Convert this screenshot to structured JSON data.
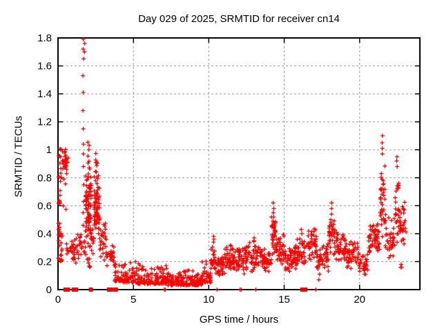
{
  "chart_data": {
    "type": "scatter",
    "title": "Day 029 of 2025, SRMTID for receiver cn14",
    "xlabel": "GPS time / hours",
    "ylabel": "SRMTID / TECUs",
    "xlim": [
      0,
      24
    ],
    "ylim": [
      0,
      1.8
    ],
    "xticks": [
      0,
      5,
      10,
      15,
      20
    ],
    "xtick_labels": [
      "0",
      "5",
      "10",
      "15",
      "20"
    ],
    "yticks": [
      0,
      0.2,
      0.4,
      0.6,
      0.8,
      1.0,
      1.2,
      1.4,
      1.6,
      1.8
    ],
    "ytick_labels": [
      "0",
      "0.2",
      "0.4",
      "0.6",
      "0.8",
      "1",
      "1.2",
      "1.4",
      "1.6",
      "1.8"
    ],
    "grid": true,
    "grid_color": "#9a9a9a",
    "marker": "plus",
    "marker_color": "#ff0000",
    "border_color": "#000000",
    "legend": "none",
    "notable_peaks": [
      {
        "x": 1.7,
        "y": 1.79
      },
      {
        "x": 2.0,
        "y": 1.18
      },
      {
        "x": 2.5,
        "y": 1.12
      },
      {
        "x": 0.5,
        "y": 1.0
      },
      {
        "x": 14.3,
        "y": 0.62
      },
      {
        "x": 18.1,
        "y": 0.62
      },
      {
        "x": 21.5,
        "y": 1.1
      },
      {
        "x": 22.5,
        "y": 0.95
      }
    ],
    "cluster_segments": [
      {
        "x0": 0.0,
        "x1": 0.28,
        "n": 26,
        "y0": 0.2,
        "y1": 0.48,
        "b": "u"
      },
      {
        "x0": 0.0,
        "x1": 0.22,
        "n": 14,
        "y0": 0.5,
        "y1": 0.92,
        "b": "u"
      },
      {
        "x0": 0.02,
        "x1": 0.3,
        "n": 6,
        "y0": 0.93,
        "y1": 1.01,
        "b": "u"
      },
      {
        "x0": 0.3,
        "x1": 0.68,
        "n": 24,
        "y0": 0.85,
        "y1": 1.02,
        "b": "m"
      },
      {
        "x0": 0.3,
        "x1": 0.6,
        "n": 5,
        "y0": 0.55,
        "y1": 0.85,
        "b": "u"
      },
      {
        "x0": 0.55,
        "x1": 1.0,
        "n": 18,
        "y0": 0.17,
        "y1": 0.36,
        "b": "m"
      },
      {
        "x0": 1.0,
        "x1": 1.5,
        "n": 24,
        "y0": 0.18,
        "y1": 0.42,
        "b": "m"
      },
      {
        "x0": 1.5,
        "x1": 1.8,
        "n": 10,
        "y0": 0.2,
        "y1": 0.4,
        "b": "m"
      },
      {
        "x0": 1.82,
        "x1": 2.2,
        "n": 85,
        "y0": 0.32,
        "y1": 0.85,
        "b": "m"
      },
      {
        "x0": 1.85,
        "x1": 2.15,
        "n": 8,
        "y0": 0.86,
        "y1": 1.18,
        "b": "l"
      },
      {
        "x0": 1.82,
        "x1": 2.25,
        "n": 12,
        "y0": 0.15,
        "y1": 0.32,
        "b": "u"
      },
      {
        "x0": 2.2,
        "x1": 2.4,
        "n": 10,
        "y0": 0.25,
        "y1": 0.5,
        "b": "m"
      },
      {
        "x0": 2.4,
        "x1": 2.75,
        "n": 65,
        "y0": 0.35,
        "y1": 0.88,
        "b": "m"
      },
      {
        "x0": 2.45,
        "x1": 2.65,
        "n": 7,
        "y0": 0.88,
        "y1": 1.12,
        "b": "l"
      },
      {
        "x0": 2.75,
        "x1": 3.2,
        "n": 30,
        "y0": 0.2,
        "y1": 0.55,
        "b": "m"
      },
      {
        "x0": 3.2,
        "x1": 3.75,
        "n": 26,
        "y0": 0.14,
        "y1": 0.34,
        "b": "m"
      },
      {
        "x0": 3.75,
        "x1": 4.3,
        "n": 36,
        "y0": 0.06,
        "y1": 0.22,
        "b": "l"
      },
      {
        "x0": 4.3,
        "x1": 5.25,
        "n": 60,
        "y0": 0.05,
        "y1": 0.22,
        "b": "l"
      },
      {
        "x0": 5.25,
        "x1": 6.25,
        "n": 62,
        "y0": 0.04,
        "y1": 0.2,
        "b": "l"
      },
      {
        "x0": 6.25,
        "x1": 7.25,
        "n": 62,
        "y0": 0.04,
        "y1": 0.19,
        "b": "l"
      },
      {
        "x0": 7.25,
        "x1": 9.55,
        "n": 150,
        "y0": 0.03,
        "y1": 0.17,
        "b": "l"
      },
      {
        "x0": 9.55,
        "x1": 10.15,
        "n": 40,
        "y0": 0.05,
        "y1": 0.23,
        "b": "l"
      },
      {
        "x0": 10.15,
        "x1": 10.5,
        "n": 26,
        "y0": 0.1,
        "y1": 0.32,
        "b": "m"
      },
      {
        "x0": 10.5,
        "x1": 11.05,
        "n": 36,
        "y0": 0.08,
        "y1": 0.26,
        "b": "m"
      },
      {
        "x0": 11.05,
        "x1": 11.65,
        "n": 42,
        "y0": 0.12,
        "y1": 0.34,
        "b": "m"
      },
      {
        "x0": 11.65,
        "x1": 12.35,
        "n": 46,
        "y0": 0.1,
        "y1": 0.31,
        "b": "m"
      },
      {
        "x0": 12.35,
        "x1": 13.35,
        "n": 58,
        "y0": 0.12,
        "y1": 0.35,
        "b": "m"
      },
      {
        "x0": 13.35,
        "x1": 14.15,
        "n": 52,
        "y0": 0.12,
        "y1": 0.31,
        "b": "m"
      },
      {
        "x0": 14.15,
        "x1": 14.45,
        "n": 34,
        "y0": 0.22,
        "y1": 0.56,
        "b": "m"
      },
      {
        "x0": 14.45,
        "x1": 15.05,
        "n": 42,
        "y0": 0.17,
        "y1": 0.42,
        "b": "m"
      },
      {
        "x0": 15.05,
        "x1": 15.65,
        "n": 40,
        "y0": 0.12,
        "y1": 0.3,
        "b": "m"
      },
      {
        "x0": 15.65,
        "x1": 16.55,
        "n": 52,
        "y0": 0.14,
        "y1": 0.4,
        "b": "m"
      },
      {
        "x0": 16.55,
        "x1": 17.15,
        "n": 40,
        "y0": 0.18,
        "y1": 0.46,
        "b": "m"
      },
      {
        "x0": 17.15,
        "x1": 17.95,
        "n": 46,
        "y0": 0.12,
        "y1": 0.34,
        "b": "m"
      },
      {
        "x0": 17.98,
        "x1": 18.35,
        "n": 32,
        "y0": 0.24,
        "y1": 0.56,
        "b": "m"
      },
      {
        "x0": 18.35,
        "x1": 19.05,
        "n": 42,
        "y0": 0.18,
        "y1": 0.44,
        "b": "m"
      },
      {
        "x0": 19.05,
        "x1": 19.95,
        "n": 50,
        "y0": 0.14,
        "y1": 0.38,
        "b": "m"
      },
      {
        "x0": 19.95,
        "x1": 20.55,
        "n": 34,
        "y0": 0.1,
        "y1": 0.27,
        "b": "m"
      },
      {
        "x0": 20.55,
        "x1": 21.35,
        "n": 56,
        "y0": 0.2,
        "y1": 0.5,
        "b": "m"
      },
      {
        "x0": 21.35,
        "x1": 21.7,
        "n": 36,
        "y0": 0.35,
        "y1": 0.95,
        "b": "m"
      },
      {
        "x0": 21.7,
        "x1": 22.35,
        "n": 40,
        "y0": 0.2,
        "y1": 0.55,
        "b": "m"
      },
      {
        "x0": 22.35,
        "x1": 22.62,
        "n": 26,
        "y0": 0.3,
        "y1": 0.85,
        "b": "m"
      },
      {
        "x0": 22.62,
        "x1": 23.1,
        "n": 32,
        "y0": 0.25,
        "y1": 0.65,
        "b": "m"
      }
    ],
    "spike_columns": [
      {
        "x": 1.68,
        "ys": [
          0.46,
          0.55,
          0.63,
          0.75,
          0.88,
          0.97,
          1.04,
          1.15,
          1.28,
          1.41,
          1.53,
          1.65,
          1.72,
          1.79
        ]
      },
      {
        "x": 1.74,
        "ys": [
          1.7,
          1.76
        ]
      },
      {
        "x": 10.32,
        "ys": [
          0.34,
          0.36,
          0.38
        ]
      },
      {
        "x": 13.0,
        "ys": [
          0.35,
          0.37
        ]
      },
      {
        "x": 14.3,
        "ys": [
          0.44,
          0.48,
          0.52,
          0.55,
          0.58,
          0.62
        ]
      },
      {
        "x": 16.15,
        "ys": [
          0.4,
          0.43
        ]
      },
      {
        "x": 18.12,
        "ys": [
          0.5,
          0.54,
          0.58,
          0.62
        ]
      },
      {
        "x": 21.52,
        "ys": [
          0.97,
          1.01,
          1.05,
          1.1
        ]
      },
      {
        "x": 22.48,
        "ys": [
          0.88,
          0.92,
          0.95
        ]
      }
    ],
    "outlier_points": [
      [
        17.3,
        0.07
      ],
      [
        17.35,
        0.11
      ],
      [
        22.72,
        0.16
      ],
      [
        22.76,
        0.18
      ],
      [
        22.8,
        0.16
      ]
    ],
    "zero_value_markers": {
      "bold_squares_x": [
        0.5,
        0.57,
        0.66,
        1.04,
        1.12,
        1.2,
        2.18,
        3.38,
        3.48,
        3.76,
        3.84,
        16.2,
        16.3,
        16.4
      ],
      "thin_plus_x": [
        7.05,
        7.12,
        10.55,
        12.08,
        12.16,
        13.12,
        16.5,
        17.1
      ]
    }
  }
}
